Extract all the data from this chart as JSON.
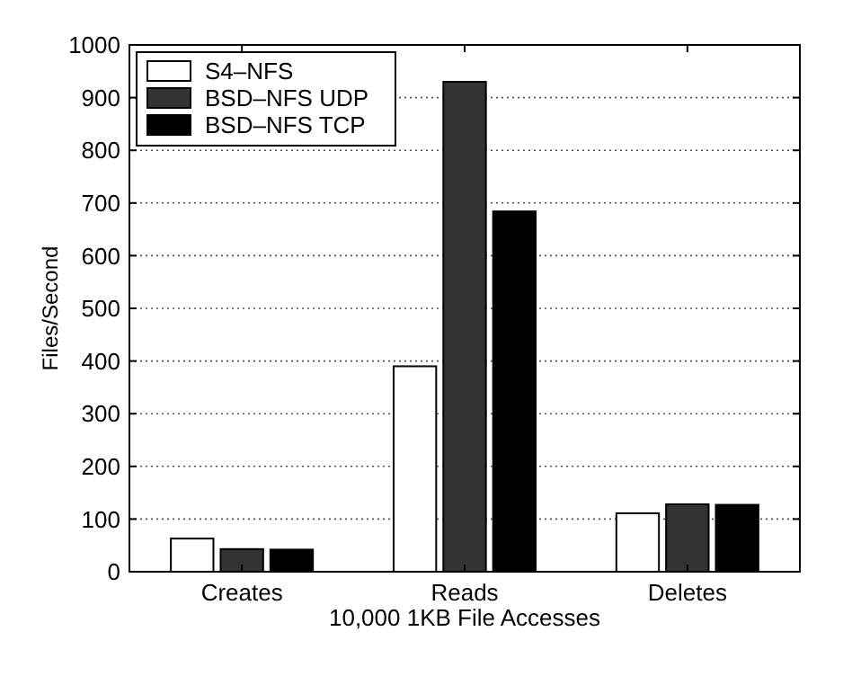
{
  "chart_data": {
    "type": "bar",
    "xlabel": "10,000 1KB File Accesses",
    "ylabel": "Files/Second",
    "categories": [
      "Creates",
      "Reads",
      "Deletes"
    ],
    "series": [
      {
        "name": "S4–NFS",
        "color": "#ffffff",
        "values": [
          63,
          390,
          111
        ]
      },
      {
        "name": "BSD–NFS UDP",
        "color": "#333333",
        "values": [
          43,
          930,
          128
        ]
      },
      {
        "name": "BSD–NFS TCP",
        "color": "#000000",
        "values": [
          42,
          684,
          127
        ]
      }
    ],
    "ylim": [
      0,
      1000
    ],
    "yticks": [
      0,
      100,
      200,
      300,
      400,
      500,
      600,
      700,
      800,
      900,
      1000
    ],
    "grid": "y",
    "legend": "top left"
  }
}
